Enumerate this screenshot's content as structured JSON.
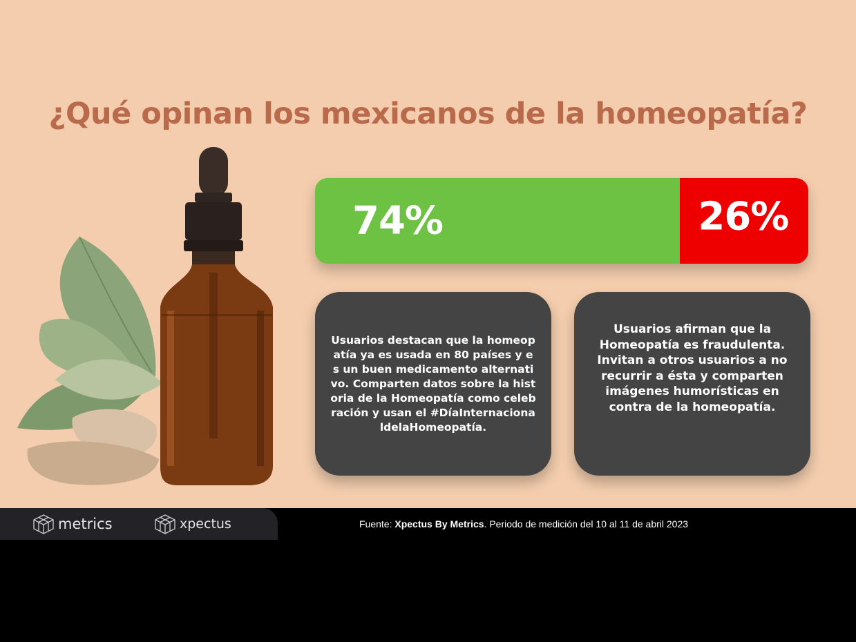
{
  "title": "¿Qué opinan los mexicanos de la homeopatía?",
  "colors": {
    "background": "#f3cdad",
    "title": "#b86a4a",
    "positive": "#6dc244",
    "negative": "#ee0000",
    "card": "#444444",
    "footer": "#000000",
    "brand_bar": "#232327"
  },
  "sentiment": {
    "positive": {
      "value": 74,
      "label": "74%"
    },
    "negative": {
      "value": 26,
      "label": "26%"
    }
  },
  "cards": {
    "positive_text": "Usuarios destacan que la homeopatía ya es usada en 80 países y es un buen medicamento alternativo. Comparten datos sobre la historia de la Homeopatía como celebración y usan el #DíaInternacionaldelaHomeopatía.",
    "negative_text": "Usuarios afirman que la Homeopatía es fraudulenta. Invitan a otros usuarios a no recurrir a ésta y comparten imágenes humorísticas en contra de la homeopatía."
  },
  "footer": {
    "brand_1": "metrics",
    "brand_2": "xpectus",
    "brand_icon": "cube-logo-icon",
    "source_prefix": "Fuente: ",
    "source_name": "Xpectus By Metrics",
    "source_suffix": ". Periodo de medición del 10 al 11 de abril 2023"
  }
}
